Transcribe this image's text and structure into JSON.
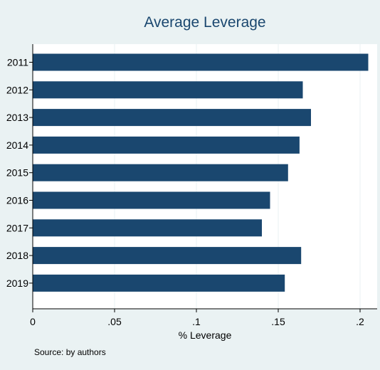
{
  "chart_data": {
    "type": "bar",
    "orientation": "horizontal",
    "title": "Average Leverage",
    "xlabel": "% Leverage",
    "ylabel": "",
    "categories": [
      "2011",
      "2012",
      "2013",
      "2014",
      "2015",
      "2016",
      "2017",
      "2018",
      "2019"
    ],
    "values": [
      0.205,
      0.165,
      0.17,
      0.163,
      0.156,
      0.145,
      0.14,
      0.164,
      0.154
    ],
    "xlim": [
      0,
      0.21
    ],
    "xticks": [
      0,
      0.05,
      0.1,
      0.15,
      0.2
    ],
    "xtick_labels": [
      "0",
      ".05",
      ".1",
      ".15",
      ".2"
    ],
    "grid": "vertical lines",
    "legend": "none",
    "bar_color": "#1a476f",
    "background_color": "#eaf2f3",
    "plot_background_color": "#ffffff",
    "note": "Source: by authors"
  }
}
